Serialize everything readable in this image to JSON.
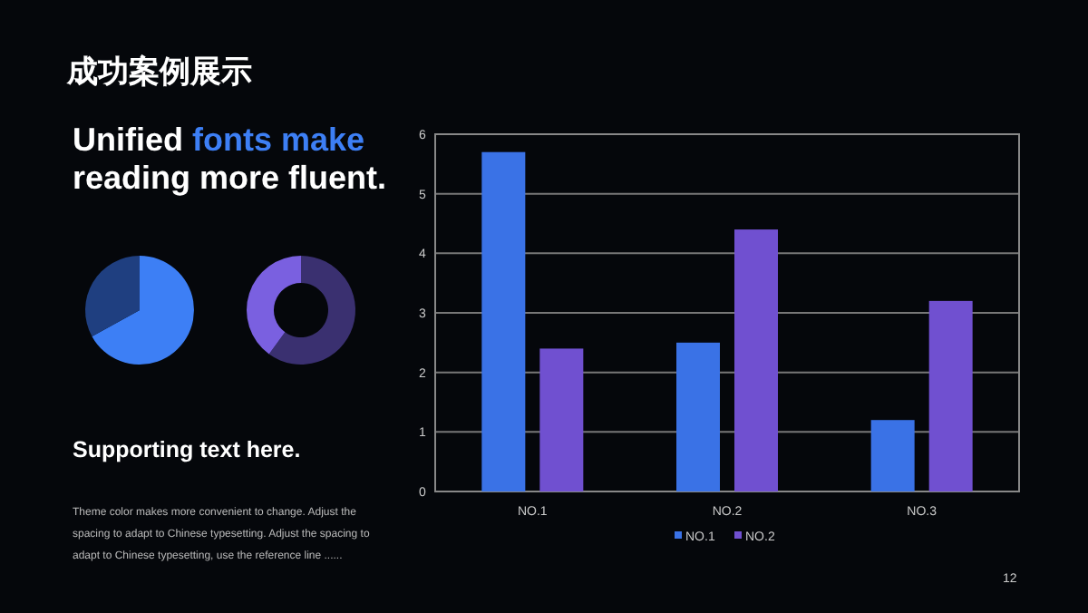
{
  "chart_data": [
    {
      "type": "other",
      "title": "成功案例展示",
      "annotations": [
        "Unified",
        "fonts make",
        "reading more fluent.",
        "Supporting text here.",
        "Theme color makes more convenient to change. Adjust the spacing to adapt to Chinese typesetting. Adjust the spacing to adapt to Chinese typesetting, use the reference line ......",
        "12"
      ]
    },
    {
      "type": "pie",
      "categories": [
        null,
        null
      ],
      "values": [
        67,
        33
      ],
      "colors": [
        "#3d7ff5",
        "#1f3f80"
      ]
    },
    {
      "type": "donut",
      "categories": [
        null,
        null
      ],
      "values": [
        60,
        40
      ],
      "colors": [
        "#3a3070",
        "#7a60e0"
      ]
    },
    {
      "type": "bar",
      "categories": [
        "NO.1",
        "NO.2",
        "NO.3"
      ],
      "series": [
        {
          "name": "NO.1",
          "color": "#3a72e6",
          "values": [
            5.7,
            2.5,
            1.2
          ]
        },
        {
          "name": "NO.2",
          "color": "#7050d0",
          "values": [
            2.4,
            4.4,
            3.2
          ]
        }
      ],
      "ylim": [
        0,
        6
      ],
      "yticks": [
        0,
        1,
        2,
        3,
        4,
        5,
        6
      ],
      "grid": "y",
      "legend": "bottom"
    }
  ]
}
